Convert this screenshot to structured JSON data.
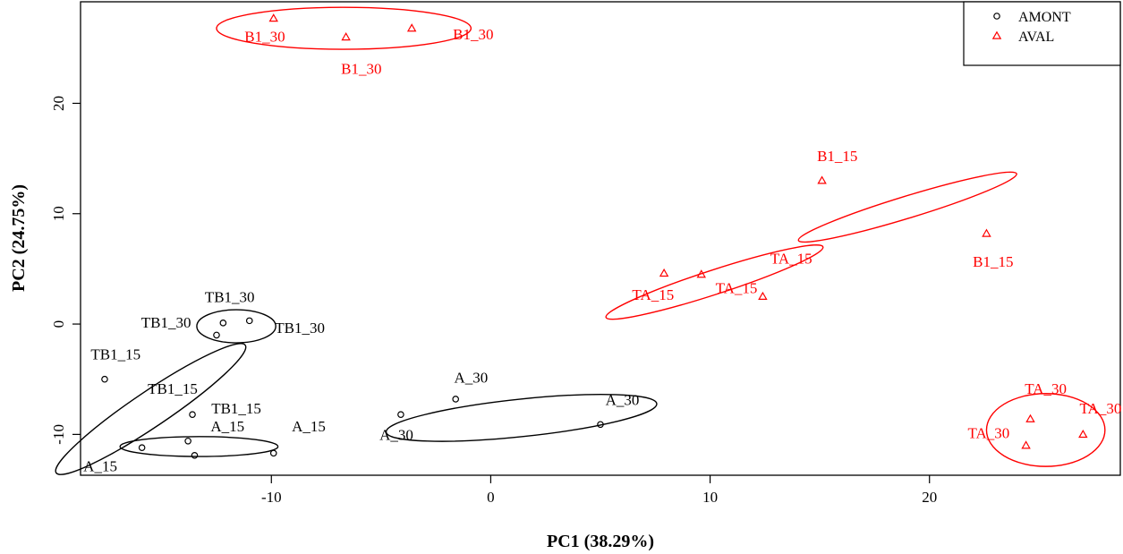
{
  "chart_data": {
    "type": "scatter",
    "xlabel": "PC1 (38.29%)",
    "ylabel": "PC2 (24.75%)",
    "xlim": [
      -18.7,
      28.7
    ],
    "ylim": [
      -13.7,
      29.2
    ],
    "xticks": [
      -10,
      0,
      10,
      20
    ],
    "yticks": [
      -10,
      0,
      10,
      20
    ],
    "legend": {
      "position": "top-right",
      "entries": [
        {
          "name": "AMONT",
          "marker": "circle",
          "color": "#000000"
        },
        {
          "name": "AVAL",
          "marker": "triangle",
          "color": "#ff0000"
        }
      ]
    },
    "series": [
      {
        "name": "AMONT",
        "marker": "circle",
        "color": "#000000",
        "points": [
          {
            "x": -12.2,
            "y": 0.1
          },
          {
            "x": -11.0,
            "y": 0.3
          },
          {
            "x": -12.5,
            "y": -1.0
          },
          {
            "x": -17.6,
            "y": -5.0
          },
          {
            "x": -13.6,
            "y": -8.2
          },
          {
            "x": -13.8,
            "y": -10.6
          },
          {
            "x": -15.9,
            "y": -11.2
          },
          {
            "x": -13.5,
            "y": -11.9
          },
          {
            "x": -9.9,
            "y": -11.7
          },
          {
            "x": -1.6,
            "y": -6.8
          },
          {
            "x": -4.1,
            "y": -8.2
          },
          {
            "x": 5.0,
            "y": -9.1
          }
        ]
      },
      {
        "name": "AVAL",
        "marker": "triangle",
        "color": "#ff0000",
        "points": [
          {
            "x": -9.9,
            "y": 27.7
          },
          {
            "x": -6.6,
            "y": 26.0
          },
          {
            "x": -3.6,
            "y": 26.8
          },
          {
            "x": 15.1,
            "y": 13.0
          },
          {
            "x": 22.6,
            "y": 8.2
          },
          {
            "x": 7.9,
            "y": 4.6
          },
          {
            "x": 9.6,
            "y": 4.5
          },
          {
            "x": 12.4,
            "y": 2.5
          },
          {
            "x": 24.6,
            "y": -8.6
          },
          {
            "x": 24.4,
            "y": -11.0
          },
          {
            "x": 27.0,
            "y": -10.0
          }
        ]
      }
    ],
    "ellipses": [
      {
        "group": "AMONT",
        "cx": -11.6,
        "cy": -0.2,
        "rx": 1.8,
        "ry": 1.5,
        "angle": 0
      },
      {
        "group": "AMONT",
        "cx": -15.5,
        "cy": -7.7,
        "rx": 5.2,
        "ry": 1.6,
        "angle": -34
      },
      {
        "group": "AMONT",
        "cx": -13.3,
        "cy": -11.1,
        "rx": 3.6,
        "ry": 0.9,
        "angle": 0
      },
      {
        "group": "AMONT",
        "cx": 1.4,
        "cy": -8.5,
        "rx": 6.2,
        "ry": 1.7,
        "angle": -6
      },
      {
        "group": "AVAL",
        "cx": -6.7,
        "cy": 26.8,
        "rx": 5.8,
        "ry": 1.9,
        "angle": 0
      },
      {
        "group": "AVAL",
        "cx": 19.0,
        "cy": 10.6,
        "rx": 5.2,
        "ry": 1.0,
        "angle": -17
      },
      {
        "group": "AVAL",
        "cx": 10.2,
        "cy": 3.8,
        "rx": 5.2,
        "ry": 1.1,
        "angle": -18
      },
      {
        "group": "AVAL",
        "cx": 25.3,
        "cy": -9.6,
        "rx": 2.7,
        "ry": 3.3,
        "angle": 0
      }
    ],
    "annotations": [
      {
        "text": "TB1_30",
        "x": -11.9,
        "y": 2.3,
        "color": "#000000"
      },
      {
        "text": "TB1_30",
        "x": -14.8,
        "y": 0.0,
        "color": "#000000"
      },
      {
        "text": "TB1_30",
        "x": -8.7,
        "y": -0.5,
        "color": "#000000"
      },
      {
        "text": "TB1_15",
        "x": -17.1,
        "y": -2.9,
        "color": "#000000"
      },
      {
        "text": "TB1_15",
        "x": -14.5,
        "y": -6.0,
        "color": "#000000"
      },
      {
        "text": "TB1_15",
        "x": -11.6,
        "y": -7.8,
        "color": "#000000"
      },
      {
        "text": "A_15",
        "x": -12.0,
        "y": -9.4,
        "color": "#000000"
      },
      {
        "text": "A_15",
        "x": -8.3,
        "y": -9.4,
        "color": "#000000"
      },
      {
        "text": "A_15",
        "x": -17.8,
        "y": -13.0,
        "color": "#000000"
      },
      {
        "text": "A_30",
        "x": -0.9,
        "y": -5.0,
        "color": "#000000"
      },
      {
        "text": "A_30",
        "x": 6.0,
        "y": -7.0,
        "color": "#000000"
      },
      {
        "text": "A_30",
        "x": -4.3,
        "y": -10.2,
        "color": "#000000"
      },
      {
        "text": "B1_30",
        "x": -10.3,
        "y": 25.9,
        "color": "#ff0000"
      },
      {
        "text": "B1_30",
        "x": -0.8,
        "y": 26.1,
        "color": "#ff0000"
      },
      {
        "text": "B1_30",
        "x": -5.9,
        "y": 23.0,
        "color": "#ff0000"
      },
      {
        "text": "B1_15",
        "x": 15.8,
        "y": 15.1,
        "color": "#ff0000"
      },
      {
        "text": "B1_15",
        "x": 22.9,
        "y": 5.5,
        "color": "#ff0000"
      },
      {
        "text": "TA_15",
        "x": 13.7,
        "y": 5.8,
        "color": "#ff0000"
      },
      {
        "text": "TA_15",
        "x": 11.2,
        "y": 3.1,
        "color": "#ff0000"
      },
      {
        "text": "TA_15",
        "x": 7.4,
        "y": 2.5,
        "color": "#ff0000"
      },
      {
        "text": "TA_30",
        "x": 25.3,
        "y": -6.0,
        "color": "#ff0000"
      },
      {
        "text": "TA_30",
        "x": 27.8,
        "y": -7.8,
        "color": "#ff0000"
      },
      {
        "text": "TA_30",
        "x": 22.7,
        "y": -10.0,
        "color": "#ff0000"
      }
    ]
  }
}
